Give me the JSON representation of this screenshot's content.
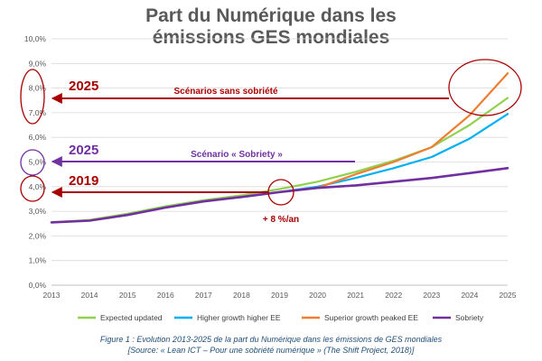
{
  "chart_data": {
    "type": "line",
    "title_line1": "Part du Numérique dans les",
    "title_line2": "émissions GES mondiales",
    "x": [
      2013,
      2014,
      2015,
      2016,
      2017,
      2018,
      2019,
      2020,
      2021,
      2022,
      2023,
      2024,
      2025
    ],
    "y_ticks": [
      "0,0%",
      "1,0%",
      "2,0%",
      "3,0%",
      "4,0%",
      "5,0%",
      "6,0%",
      "7,0%",
      "8,0%",
      "9,0%",
      "10,0%"
    ],
    "ylim": [
      0,
      10
    ],
    "grid": true,
    "legend_position": "bottom",
    "series": [
      {
        "name": "Expected updated",
        "color": "#92d050",
        "x": [
          2013,
          2014,
          2015,
          2016,
          2017,
          2018,
          2019,
          2020,
          2021,
          2022,
          2023,
          2024,
          2025
        ],
        "values": [
          2.55,
          2.65,
          2.9,
          3.2,
          3.45,
          3.65,
          3.9,
          4.2,
          4.6,
          5.05,
          5.6,
          6.5,
          7.6
        ]
      },
      {
        "name": "Higher growth higher EE",
        "color": "#00b0f0",
        "x": [
          2019,
          2020,
          2021,
          2022,
          2023,
          2024,
          2025
        ],
        "values": [
          3.78,
          4.0,
          4.35,
          4.75,
          5.2,
          5.95,
          6.95
        ]
      },
      {
        "name": "Superior growth peaked EE",
        "color": "#ed7d31",
        "x": [
          2019,
          2020,
          2021,
          2022,
          2023,
          2024,
          2025
        ],
        "values": [
          3.78,
          3.95,
          4.5,
          5.0,
          5.6,
          6.9,
          8.6
        ]
      },
      {
        "name": "Sobriety",
        "color": "#7030a0",
        "x": [
          2013,
          2014,
          2015,
          2016,
          2017,
          2018,
          2019,
          2020,
          2021,
          2022,
          2023,
          2024,
          2025
        ],
        "values": [
          2.55,
          2.62,
          2.85,
          3.15,
          3.4,
          3.58,
          3.78,
          3.95,
          4.05,
          4.2,
          4.35,
          4.55,
          4.75
        ]
      }
    ],
    "annotations": {
      "label_2025_red": "2025",
      "label_scenarios_sans": "Scénarios sans sobriété",
      "label_2025_purple": "2025",
      "label_scenario_sobriety": "Scénario « Sobriety »",
      "label_2019": "2019",
      "label_growth": "+ 8 %/an"
    },
    "caption_line1": "Figure 1 : Evolution 2013-2025 de la part du Numérique dans les émissions de GES mondiales",
    "caption_line2": "[Source: « Lean ICT – Pour une sobriété numérique »  (The Shift Project, 2018)]"
  },
  "colors": {
    "annotation_red": "#a80000",
    "annotation_purple": "#7030a0",
    "grid": "#d9d9d9",
    "axis": "#bfbfbf"
  }
}
